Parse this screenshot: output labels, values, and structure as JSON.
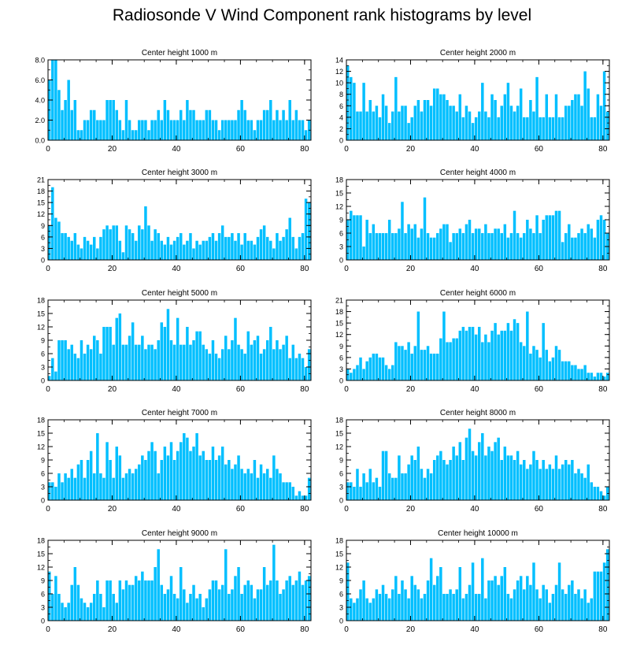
{
  "title": "Radiosonde V Wind Component rank histograms by level",
  "bar_color": "#00bfff",
  "chart_data": [
    {
      "type": "bar",
      "title": "Center height 1000 m",
      "xlim": [
        0,
        82
      ],
      "ylim": [
        0,
        8
      ],
      "yticks": [
        0,
        2,
        4,
        6,
        8
      ],
      "ytick_labels": [
        "0.0",
        "2.0",
        "4.0",
        "6.0",
        "8.0"
      ],
      "xticks": [
        0,
        20,
        40,
        60,
        80
      ],
      "xtick_labels": [
        "0",
        "20",
        "40",
        "60",
        "80"
      ],
      "values": [
        6,
        8,
        8,
        5,
        3,
        4,
        6,
        3,
        4,
        1,
        1,
        2,
        2,
        3,
        3,
        2,
        2,
        2,
        4,
        4,
        4,
        3,
        2,
        1,
        4,
        2,
        1,
        1,
        2,
        2,
        2,
        1,
        2,
        2,
        3,
        2,
        4,
        3,
        2,
        2,
        2,
        3,
        2,
        4,
        3,
        3,
        2,
        2,
        2,
        3,
        3,
        2,
        2,
        1,
        2,
        2,
        2,
        2,
        2,
        3,
        4,
        3,
        2,
        2,
        1,
        2,
        2,
        3,
        3,
        4,
        2,
        3,
        2,
        3,
        2,
        4,
        2,
        3,
        2,
        2,
        1,
        2
      ]
    },
    {
      "type": "bar",
      "title": "Center height 2000 m",
      "xlim": [
        0,
        82
      ],
      "ylim": [
        0,
        14
      ],
      "yticks": [
        0,
        2,
        4,
        6,
        8,
        10,
        12,
        14
      ],
      "ytick_labels": [
        "0",
        "2",
        "4",
        "6",
        "8",
        "10",
        "12",
        "14"
      ],
      "xticks": [
        0,
        20,
        40,
        60,
        80
      ],
      "xtick_labels": [
        "0",
        "20",
        "40",
        "60",
        "80"
      ],
      "values": [
        13,
        11,
        10,
        5,
        5,
        10,
        5,
        7,
        5,
        6,
        4,
        8,
        6,
        3,
        5,
        11,
        5,
        6,
        6,
        3,
        4,
        6,
        7,
        5,
        7,
        7,
        6,
        9,
        9,
        8,
        8,
        7,
        6,
        6,
        5,
        8,
        4,
        6,
        5,
        3,
        4,
        5,
        10,
        5,
        4,
        8,
        7,
        4,
        6,
        8,
        10,
        6,
        5,
        6,
        9,
        4,
        4,
        7,
        5,
        11,
        4,
        4,
        8,
        4,
        4,
        8,
        4,
        4,
        6,
        6,
        7,
        8,
        8,
        6,
        12,
        9,
        4,
        4,
        8,
        6,
        12,
        5
      ]
    },
    {
      "type": "bar",
      "title": "Center height 3000 m",
      "xlim": [
        0,
        82
      ],
      "ylim": [
        0,
        21
      ],
      "yticks": [
        0,
        3,
        6,
        9,
        12,
        15,
        18,
        21
      ],
      "ytick_labels": [
        "0",
        "3",
        "6",
        "9",
        "12",
        "15",
        "18",
        "21"
      ],
      "xticks": [
        0,
        20,
        40,
        60,
        80
      ],
      "xtick_labels": [
        "0",
        "20",
        "40",
        "60",
        "80"
      ],
      "values": [
        9,
        19,
        11,
        10,
        7,
        7,
        6,
        5,
        7,
        4,
        3,
        6,
        5,
        4,
        6,
        3,
        6,
        8,
        9,
        8,
        9,
        9,
        5,
        2,
        9,
        8,
        7,
        5,
        9,
        8,
        14,
        9,
        5,
        8,
        7,
        5,
        4,
        6,
        4,
        5,
        6,
        7,
        4,
        5,
        7,
        3,
        5,
        4,
        5,
        5,
        6,
        7,
        5,
        7,
        9,
        6,
        6,
        7,
        5,
        7,
        4,
        7,
        5,
        5,
        4,
        6,
        8,
        9,
        6,
        5,
        3,
        7,
        5,
        6,
        8,
        11,
        6,
        3,
        6,
        7,
        16,
        15
      ]
    },
    {
      "type": "bar",
      "title": "Center height 4000 m",
      "xlim": [
        0,
        82
      ],
      "ylim": [
        0,
        18
      ],
      "yticks": [
        0,
        3,
        6,
        9,
        12,
        15,
        18
      ],
      "ytick_labels": [
        "0",
        "3",
        "6",
        "9",
        "12",
        "15",
        "18"
      ],
      "xticks": [
        0,
        20,
        40,
        60,
        80
      ],
      "xtick_labels": [
        "0",
        "20",
        "40",
        "60",
        "80"
      ],
      "values": [
        9,
        11,
        10,
        10,
        10,
        3,
        9,
        6,
        8,
        6,
        6,
        6,
        6,
        9,
        6,
        6,
        7,
        13,
        6,
        8,
        7,
        8,
        5,
        7,
        14,
        6,
        5,
        5,
        6,
        7,
        8,
        8,
        4,
        6,
        6,
        7,
        6,
        8,
        9,
        6,
        7,
        7,
        6,
        8,
        6,
        6,
        7,
        7,
        6,
        8,
        5,
        6,
        11,
        6,
        5,
        6,
        9,
        7,
        6,
        10,
        6,
        9,
        10,
        10,
        10,
        11,
        11,
        4,
        6,
        8,
        5,
        5,
        6,
        7,
        6,
        8,
        7,
        5,
        9,
        10,
        9,
        6
      ]
    },
    {
      "type": "bar",
      "title": "Center height 5000 m",
      "xlim": [
        0,
        82
      ],
      "ylim": [
        0,
        18
      ],
      "yticks": [
        0,
        3,
        6,
        9,
        12,
        15,
        18
      ],
      "ytick_labels": [
        "0",
        "3",
        "6",
        "9",
        "12",
        "15",
        "18"
      ],
      "xticks": [
        0,
        20,
        40,
        60,
        80
      ],
      "xtick_labels": [
        "0",
        "20",
        "40",
        "60",
        "80"
      ],
      "values": [
        1,
        5,
        2,
        9,
        9,
        9,
        7,
        8,
        6,
        5,
        9,
        6,
        8,
        7,
        10,
        9,
        6,
        12,
        12,
        12,
        8,
        14,
        15,
        8,
        8,
        10,
        13,
        8,
        8,
        10,
        7,
        8,
        8,
        7,
        9,
        13,
        12,
        16,
        9,
        8,
        14,
        8,
        8,
        12,
        8,
        9,
        11,
        11,
        8,
        7,
        6,
        9,
        6,
        5,
        7,
        10,
        7,
        9,
        14,
        8,
        7,
        6,
        11,
        8,
        9,
        10,
        6,
        7,
        9,
        12,
        7,
        9,
        7,
        8,
        10,
        5,
        8,
        5,
        6,
        5,
        3,
        7
      ]
    },
    {
      "type": "bar",
      "title": "Center height 6000 m",
      "xlim": [
        0,
        82
      ],
      "ylim": [
        0,
        21
      ],
      "yticks": [
        0,
        3,
        6,
        9,
        12,
        15,
        18,
        21
      ],
      "ytick_labels": [
        "0",
        "3",
        "6",
        "9",
        "12",
        "15",
        "18",
        "21"
      ],
      "xticks": [
        0,
        20,
        40,
        60,
        80
      ],
      "xtick_labels": [
        "0",
        "20",
        "40",
        "60",
        "80"
      ],
      "values": [
        3,
        2,
        3,
        4,
        6,
        3,
        5,
        6,
        7,
        7,
        6,
        6,
        4,
        3,
        4,
        10,
        9,
        9,
        8,
        10,
        7,
        9,
        18,
        8,
        8,
        9,
        7,
        7,
        7,
        11,
        18,
        10,
        10,
        11,
        11,
        13,
        14,
        13,
        14,
        14,
        12,
        14,
        10,
        12,
        10,
        13,
        15,
        12,
        13,
        13,
        15,
        13,
        16,
        15,
        10,
        9,
        18,
        7,
        9,
        8,
        6,
        15,
        8,
        5,
        6,
        9,
        8,
        5,
        5,
        5,
        4,
        4,
        3,
        3,
        4,
        2,
        2,
        1,
        2,
        2,
        1,
        2
      ]
    },
    {
      "type": "bar",
      "title": "Center height 7000 m",
      "xlim": [
        0,
        82
      ],
      "ylim": [
        0,
        18
      ],
      "yticks": [
        0,
        3,
        6,
        9,
        12,
        15,
        18
      ],
      "ytick_labels": [
        "0",
        "3",
        "6",
        "9",
        "12",
        "15",
        "18"
      ],
      "xticks": [
        0,
        20,
        40,
        60,
        80
      ],
      "xtick_labels": [
        "0",
        "20",
        "40",
        "60",
        "80"
      ],
      "values": [
        4,
        4,
        3,
        6,
        4,
        6,
        5,
        7,
        5,
        8,
        9,
        5,
        9,
        11,
        6,
        15,
        6,
        5,
        13,
        9,
        5,
        12,
        10,
        5,
        6,
        7,
        6,
        7,
        8,
        10,
        9,
        11,
        13,
        11,
        6,
        9,
        12,
        10,
        13,
        9,
        11,
        13,
        15,
        14,
        11,
        12,
        15,
        10,
        11,
        9,
        9,
        12,
        9,
        10,
        12,
        8,
        9,
        7,
        8,
        10,
        7,
        6,
        7,
        6,
        9,
        5,
        8,
        6,
        7,
        5,
        10,
        7,
        6,
        4,
        4,
        4,
        3,
        1,
        2,
        1,
        1,
        5
      ]
    },
    {
      "type": "bar",
      "title": "Center height 8000 m",
      "xlim": [
        0,
        82
      ],
      "ylim": [
        0,
        18
      ],
      "yticks": [
        0,
        3,
        6,
        9,
        12,
        15,
        18
      ],
      "ytick_labels": [
        "0",
        "3",
        "6",
        "9",
        "12",
        "15",
        "18"
      ],
      "xticks": [
        0,
        20,
        40,
        60,
        80
      ],
      "xtick_labels": [
        "0",
        "20",
        "40",
        "60",
        "80"
      ],
      "values": [
        4,
        4,
        3,
        7,
        3,
        6,
        4,
        7,
        4,
        5,
        3,
        11,
        11,
        6,
        5,
        5,
        10,
        6,
        6,
        8,
        10,
        9,
        12,
        7,
        5,
        7,
        6,
        9,
        10,
        11,
        9,
        8,
        9,
        12,
        10,
        13,
        9,
        14,
        16,
        11,
        10,
        13,
        15,
        10,
        12,
        11,
        13,
        14,
        9,
        12,
        10,
        10,
        9,
        11,
        8,
        9,
        7,
        8,
        11,
        9,
        7,
        9,
        7,
        8,
        7,
        10,
        7,
        8,
        9,
        8,
        9,
        6,
        7,
        6,
        5,
        8,
        4,
        3,
        3,
        2,
        1,
        3
      ]
    },
    {
      "type": "bar",
      "title": "Center height 9000 m",
      "xlim": [
        0,
        82
      ],
      "ylim": [
        0,
        18
      ],
      "yticks": [
        0,
        3,
        6,
        9,
        12,
        15,
        18
      ],
      "ytick_labels": [
        "0",
        "3",
        "6",
        "9",
        "12",
        "15",
        "18"
      ],
      "xticks": [
        0,
        20,
        40,
        60,
        80
      ],
      "xtick_labels": [
        "0",
        "20",
        "40",
        "60",
        "80"
      ],
      "values": [
        11,
        6,
        10,
        6,
        4,
        3,
        4,
        8,
        12,
        8,
        5,
        4,
        3,
        4,
        6,
        9,
        6,
        3,
        9,
        9,
        6,
        4,
        9,
        7,
        9,
        8,
        8,
        10,
        9,
        11,
        9,
        9,
        9,
        12,
        16,
        8,
        6,
        7,
        10,
        6,
        5,
        12,
        7,
        4,
        6,
        8,
        5,
        6,
        3,
        5,
        7,
        9,
        9,
        7,
        8,
        16,
        6,
        7,
        10,
        12,
        6,
        8,
        9,
        8,
        5,
        7,
        7,
        12,
        8,
        9,
        17,
        9,
        6,
        7,
        9,
        10,
        8,
        9,
        11,
        8,
        9,
        10
      ]
    },
    {
      "type": "bar",
      "title": "Center height 10000 m",
      "xlim": [
        0,
        82
      ],
      "ylim": [
        0,
        18
      ],
      "yticks": [
        0,
        3,
        6,
        9,
        12,
        15,
        18
      ],
      "ytick_labels": [
        "0",
        "3",
        "6",
        "9",
        "12",
        "15",
        "18"
      ],
      "xticks": [
        0,
        20,
        40,
        60,
        80
      ],
      "xtick_labels": [
        "0",
        "20",
        "40",
        "60",
        "80"
      ],
      "values": [
        13,
        5,
        4,
        5,
        7,
        9,
        5,
        4,
        5,
        7,
        6,
        8,
        6,
        5,
        7,
        10,
        6,
        9,
        7,
        5,
        10,
        8,
        7,
        5,
        6,
        9,
        14,
        8,
        10,
        12,
        6,
        6,
        7,
        6,
        7,
        12,
        5,
        6,
        8,
        13,
        6,
        6,
        14,
        5,
        9,
        9,
        10,
        8,
        10,
        12,
        6,
        5,
        7,
        9,
        10,
        7,
        10,
        8,
        13,
        7,
        5,
        8,
        7,
        4,
        6,
        8,
        13,
        7,
        6,
        8,
        9,
        6,
        7,
        5,
        7,
        4,
        5,
        11,
        11,
        11,
        13,
        16
      ]
    }
  ]
}
